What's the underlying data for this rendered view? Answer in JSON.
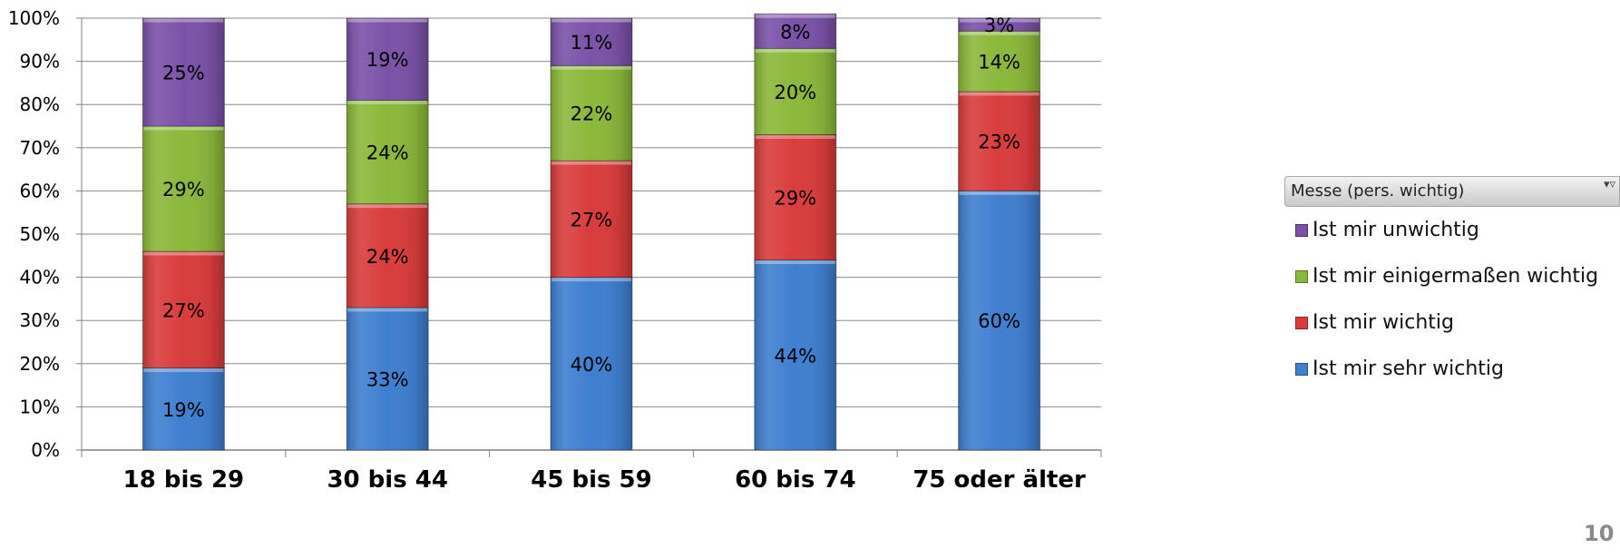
{
  "chart_data": {
    "type": "bar",
    "stacked": true,
    "percent_stacked": true,
    "categories": [
      "18 bis 29",
      "30 bis 44",
      "45 bis 59",
      "60 bis 74",
      "75 oder älter"
    ],
    "series": [
      {
        "name": "Ist mir sehr wichtig",
        "color": "#3f7fd0",
        "values": [
          19,
          33,
          40,
          44,
          60
        ],
        "labels": [
          "19%",
          "33%",
          "40%",
          "44%",
          "60%"
        ]
      },
      {
        "name": "Ist mir wichtig",
        "color": "#d93c3c",
        "values": [
          27,
          24,
          27,
          29,
          23
        ],
        "labels": [
          "27%",
          "24%",
          "27%",
          "29%",
          "23%"
        ]
      },
      {
        "name": "Ist mir einigermaßen wichtig",
        "color": "#8bb83a",
        "values": [
          29,
          24,
          22,
          20,
          14
        ],
        "labels": [
          "29%",
          "24%",
          "22%",
          "20%",
          "14%"
        ]
      },
      {
        "name": "Ist mir unwichtig",
        "color": "#7b52a8",
        "values": [
          25,
          19,
          11,
          8,
          3
        ],
        "labels": [
          "25%",
          "19%",
          "11%",
          "8%",
          "3%"
        ]
      }
    ],
    "y_ticks": [
      "0%",
      "10%",
      "20%",
      "30%",
      "40%",
      "50%",
      "60%",
      "70%",
      "80%",
      "90%",
      "100%"
    ],
    "ylim": [
      0,
      100
    ],
    "grid": true,
    "legend_position": "right"
  },
  "legend": {
    "title": "Messe (pers. wichtig)",
    "items": [
      "Ist mir unwichtig",
      "Ist mir einigermaßen wichtig",
      "Ist mir wichtig",
      "Ist mir sehr wichtig"
    ],
    "colors": [
      "#7b52a8",
      "#8bb83a",
      "#d93c3c",
      "#3f7fd0"
    ],
    "filter_icon": "filter-dropdown-icon"
  },
  "page_number": "10"
}
